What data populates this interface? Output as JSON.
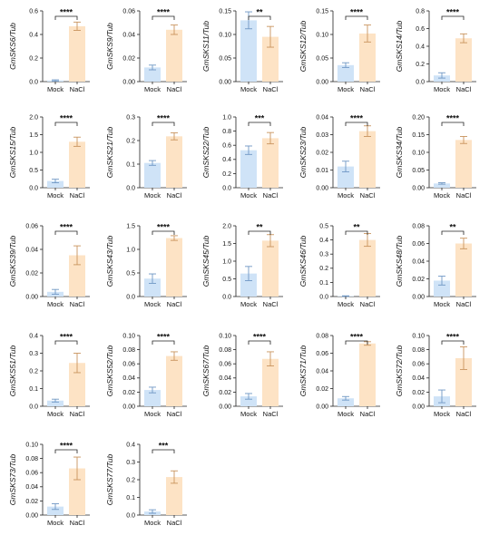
{
  "colors": {
    "mock": "#cfe3f7",
    "nacl": "#fde3c5",
    "axis": "#222222"
  },
  "chart_data": [
    {
      "type": "bar",
      "ylabel": "GmSKS6/Tub",
      "categories": [
        "Mock",
        "NaCl"
      ],
      "yticks": [
        "0.0",
        "0.2",
        "0.4",
        "0.6"
      ],
      "ylim": [
        0,
        0.6
      ],
      "values": [
        0.01,
        0.47
      ],
      "errors": [
        0.005,
        0.035
      ],
      "significance": "****"
    },
    {
      "type": "bar",
      "ylabel": "GmSKS9/Tub",
      "categories": [
        "Mock",
        "NaCl"
      ],
      "yticks": [
        "0.00",
        "0.02",
        "0.04",
        "0.06"
      ],
      "ylim": [
        0,
        0.06
      ],
      "values": [
        0.012,
        0.044
      ],
      "errors": [
        0.002,
        0.004
      ],
      "significance": "****"
    },
    {
      "type": "bar",
      "ylabel": "GmSKS11/Tub",
      "categories": [
        "Mock",
        "NaCl"
      ],
      "yticks": [
        "0.00",
        "0.05",
        "0.10",
        "0.15"
      ],
      "ylim": [
        0,
        0.15
      ],
      "values": [
        0.13,
        0.095
      ],
      "errors": [
        0.018,
        0.022
      ],
      "significance": "**"
    },
    {
      "type": "bar",
      "ylabel": "GmSKS12/Tub",
      "categories": [
        "Mock",
        "NaCl"
      ],
      "yticks": [
        "0.00",
        "0.05",
        "0.10",
        "0.15"
      ],
      "ylim": [
        0,
        0.15
      ],
      "values": [
        0.035,
        0.102
      ],
      "errors": [
        0.005,
        0.018
      ],
      "significance": "****"
    },
    {
      "type": "bar",
      "ylabel": "GmSKS14/Tub",
      "categories": [
        "Mock",
        "NaCl"
      ],
      "yticks": [
        "0.0",
        "0.2",
        "0.4",
        "0.6",
        "0.8"
      ],
      "ylim": [
        0,
        0.8
      ],
      "values": [
        0.07,
        0.49
      ],
      "errors": [
        0.03,
        0.05
      ],
      "significance": "****"
    },
    {
      "type": "bar",
      "ylabel": "GmSKS15/Tub",
      "categories": [
        "Mock",
        "NaCl"
      ],
      "yticks": [
        "0.0",
        "0.5",
        "1.0",
        "1.5",
        "2.0"
      ],
      "ylim": [
        0,
        2.0
      ],
      "values": [
        0.19,
        1.3
      ],
      "errors": [
        0.05,
        0.13
      ],
      "significance": "****"
    },
    {
      "type": "bar",
      "ylabel": "GmSKS21/Tub",
      "categories": [
        "Mock",
        "NaCl"
      ],
      "yticks": [
        "0.0",
        "0.1",
        "0.2",
        "0.3"
      ],
      "ylim": [
        0,
        0.3
      ],
      "values": [
        0.105,
        0.218
      ],
      "errors": [
        0.01,
        0.015
      ],
      "significance": "****"
    },
    {
      "type": "bar",
      "ylabel": "GmSKS22/Tub",
      "categories": [
        "Mock",
        "NaCl"
      ],
      "yticks": [
        "0.0",
        "0.2",
        "0.4",
        "0.6",
        "0.8",
        "1.0"
      ],
      "ylim": [
        0,
        1.0
      ],
      "values": [
        0.53,
        0.7
      ],
      "errors": [
        0.06,
        0.08
      ],
      "significance": "***"
    },
    {
      "type": "bar",
      "ylabel": "GmSKS23/Tub",
      "categories": [
        "Mock",
        "NaCl"
      ],
      "yticks": [
        "0.00",
        "0.01",
        "0.02",
        "0.03",
        "0.04"
      ],
      "ylim": [
        0,
        0.04
      ],
      "values": [
        0.012,
        0.032
      ],
      "errors": [
        0.003,
        0.003
      ],
      "significance": "****"
    },
    {
      "type": "bar",
      "ylabel": "GmSKS34/Tub",
      "categories": [
        "Mock",
        "NaCl"
      ],
      "yticks": [
        "0.00",
        "0.05",
        "0.10",
        "0.15",
        "0.20"
      ],
      "ylim": [
        0,
        0.2
      ],
      "values": [
        0.012,
        0.135
      ],
      "errors": [
        0.002,
        0.01
      ],
      "significance": "****"
    },
    {
      "type": "bar",
      "ylabel": "GmSKS39/Tub",
      "categories": [
        "Mock",
        "NaCl"
      ],
      "yticks": [
        "0.00",
        "0.02",
        "0.04",
        "0.06"
      ],
      "ylim": [
        0,
        0.06
      ],
      "values": [
        0.004,
        0.035
      ],
      "errors": [
        0.002,
        0.008
      ],
      "significance": "****"
    },
    {
      "type": "bar",
      "ylabel": "GmSKS43/Tub",
      "categories": [
        "Mock",
        "NaCl"
      ],
      "yticks": [
        "0.0",
        "0.5",
        "1.0",
        "1.5"
      ],
      "ylim": [
        0,
        1.5
      ],
      "values": [
        0.38,
        1.24
      ],
      "errors": [
        0.1,
        0.05
      ],
      "significance": "****"
    },
    {
      "type": "bar",
      "ylabel": "GmSKS45/Tub",
      "categories": [
        "Mock",
        "NaCl"
      ],
      "yticks": [
        "0.0",
        "0.5",
        "1.0",
        "1.5",
        "2.0"
      ],
      "ylim": [
        0,
        2.0
      ],
      "values": [
        0.65,
        1.58
      ],
      "errors": [
        0.2,
        0.17
      ],
      "significance": "**"
    },
    {
      "type": "bar",
      "ylabel": "GmSKS46/Tub",
      "categories": [
        "Mock",
        "NaCl"
      ],
      "yticks": [
        "0.0",
        "0.1",
        "0.2",
        "0.3",
        "0.4",
        "0.5"
      ],
      "ylim": [
        0,
        0.5
      ],
      "values": [
        0.003,
        0.4
      ],
      "errors": [
        0.002,
        0.045
      ],
      "significance": "**"
    },
    {
      "type": "bar",
      "ylabel": "GmSKS48/Tub",
      "categories": [
        "Mock",
        "NaCl"
      ],
      "yticks": [
        "0.00",
        "0.02",
        "0.04",
        "0.06",
        "0.08"
      ],
      "ylim": [
        0,
        0.08
      ],
      "values": [
        0.018,
        0.06
      ],
      "errors": [
        0.005,
        0.006
      ],
      "significance": "**"
    },
    {
      "type": "bar",
      "ylabel": "GmSKS51/Tub",
      "categories": [
        "Mock",
        "NaCl"
      ],
      "yticks": [
        "0.0",
        "0.1",
        "0.2",
        "0.3",
        "0.4"
      ],
      "ylim": [
        0,
        0.4
      ],
      "values": [
        0.032,
        0.245
      ],
      "errors": [
        0.008,
        0.055
      ],
      "significance": "****"
    },
    {
      "type": "bar",
      "ylabel": "GmSKS52/Tub",
      "categories": [
        "Mock",
        "NaCl"
      ],
      "yticks": [
        "0.00",
        "0.02",
        "0.04",
        "0.06",
        "0.08",
        "0.10"
      ],
      "ylim": [
        0,
        0.1
      ],
      "values": [
        0.023,
        0.071
      ],
      "errors": [
        0.004,
        0.006
      ],
      "significance": "****"
    },
    {
      "type": "bar",
      "ylabel": "GmSKS67/Tub",
      "categories": [
        "Mock",
        "NaCl"
      ],
      "yticks": [
        "0.00",
        "0.02",
        "0.04",
        "0.06",
        "0.08",
        "0.10"
      ],
      "ylim": [
        0,
        0.1
      ],
      "values": [
        0.014,
        0.067
      ],
      "errors": [
        0.004,
        0.01
      ],
      "significance": "****"
    },
    {
      "type": "bar",
      "ylabel": "GmSKS71/Tub",
      "categories": [
        "Mock",
        "NaCl"
      ],
      "yticks": [
        "0.00",
        "0.02",
        "0.04",
        "0.06",
        "0.08"
      ],
      "ylim": [
        0,
        0.08
      ],
      "values": [
        0.009,
        0.071
      ],
      "errors": [
        0.002,
        0.002
      ],
      "significance": "****"
    },
    {
      "type": "bar",
      "ylabel": "GmSKS72/Tub",
      "categories": [
        "Mock",
        "NaCl"
      ],
      "yticks": [
        "0.00",
        "0.02",
        "0.04",
        "0.06",
        "0.08",
        "0.10"
      ],
      "ylim": [
        0,
        0.1
      ],
      "values": [
        0.014,
        0.068
      ],
      "errors": [
        0.009,
        0.016
      ],
      "significance": "****"
    },
    {
      "type": "bar",
      "ylabel": "GmSKS73/Tub",
      "categories": [
        "Mock",
        "NaCl"
      ],
      "yticks": [
        "0.00",
        "0.02",
        "0.04",
        "0.06",
        "0.08",
        "0.10"
      ],
      "ylim": [
        0,
        0.1
      ],
      "values": [
        0.012,
        0.066
      ],
      "errors": [
        0.004,
        0.016
      ],
      "significance": "****"
    },
    {
      "type": "bar",
      "ylabel": "GmSKS77/Tub",
      "categories": [
        "Mock",
        "NaCl"
      ],
      "yticks": [
        "0.0",
        "0.1",
        "0.2",
        "0.3",
        "0.4"
      ],
      "ylim": [
        0,
        0.4
      ],
      "values": [
        0.02,
        0.215
      ],
      "errors": [
        0.01,
        0.035
      ],
      "significance": "***"
    }
  ]
}
